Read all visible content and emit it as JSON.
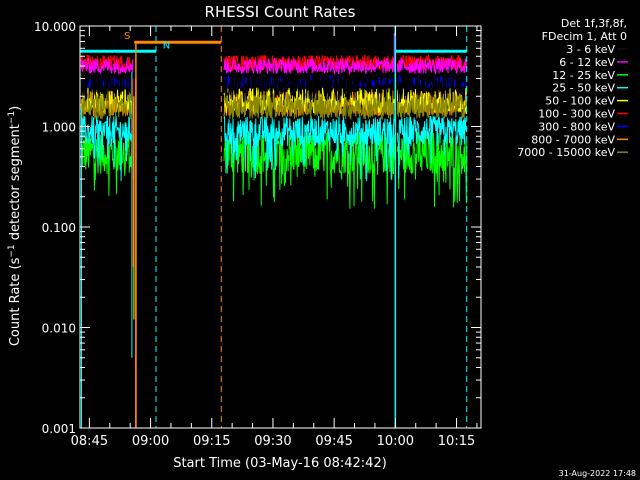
{
  "chart_data": {
    "type": "line",
    "title": "RHESSI Count Rates",
    "xlabel": "Start Time (03-May-16 08:42:42)",
    "ylabel": "Count Rate (s^-1 detector segment^-1)",
    "ylabel_main": "Count Rate (s",
    "ylabel_sup1": "−1",
    "ylabel_mid": " detector segment",
    "ylabel_sup2": "−1",
    "ylabel_end": ")",
    "yscale": "log",
    "xlim": [
      "08:42:42",
      "10:21:00"
    ],
    "ylim": [
      0.001,
      10.0
    ],
    "yticks": [
      {
        "value": 0.001,
        "label": "0.001"
      },
      {
        "value": 0.01,
        "label": "0.010"
      },
      {
        "value": 0.1,
        "label": "0.100"
      },
      {
        "value": 1.0,
        "label": "1.000"
      },
      {
        "value": 10.0,
        "label": "10.000"
      }
    ],
    "xticks": [
      "08:45",
      "09:00",
      "09:15",
      "09:30",
      "09:45",
      "10:00",
      "10:15"
    ],
    "legend_header": [
      "Det 1f,3f,8f,",
      "FDecim 1, Att 0"
    ],
    "legend_position": "right",
    "series": [
      {
        "name": "3 - 6 keV",
        "color": "#000000",
        "level": 3.0
      },
      {
        "name": "6 - 12 keV",
        "color": "#ff00ff",
        "level": 4.0
      },
      {
        "name": "12 - 25 keV",
        "color": "#00ff00",
        "level": 0.55
      },
      {
        "name": "25 - 50 keV",
        "color": "#00ffff",
        "level": 0.9
      },
      {
        "name": "50 - 100 keV",
        "color": "#ffff00",
        "level": 1.8
      },
      {
        "name": "100 - 300 keV",
        "color": "#ff0000",
        "level": 4.3
      },
      {
        "name": "300 - 800 keV",
        "color": "#0000ff",
        "level": 2.8
      },
      {
        "name": "800 - 7000 keV",
        "color": "#ff8800",
        "level": 1.7
      },
      {
        "name": "7000 - 15000 keV",
        "color": "#888800",
        "level": 1.6
      }
    ],
    "annotations": [
      {
        "label": "S",
        "color": "#ff8800"
      },
      {
        "label": "N",
        "color": "#00ffff"
      }
    ],
    "footer": "31-Aug-2022 17:48"
  }
}
